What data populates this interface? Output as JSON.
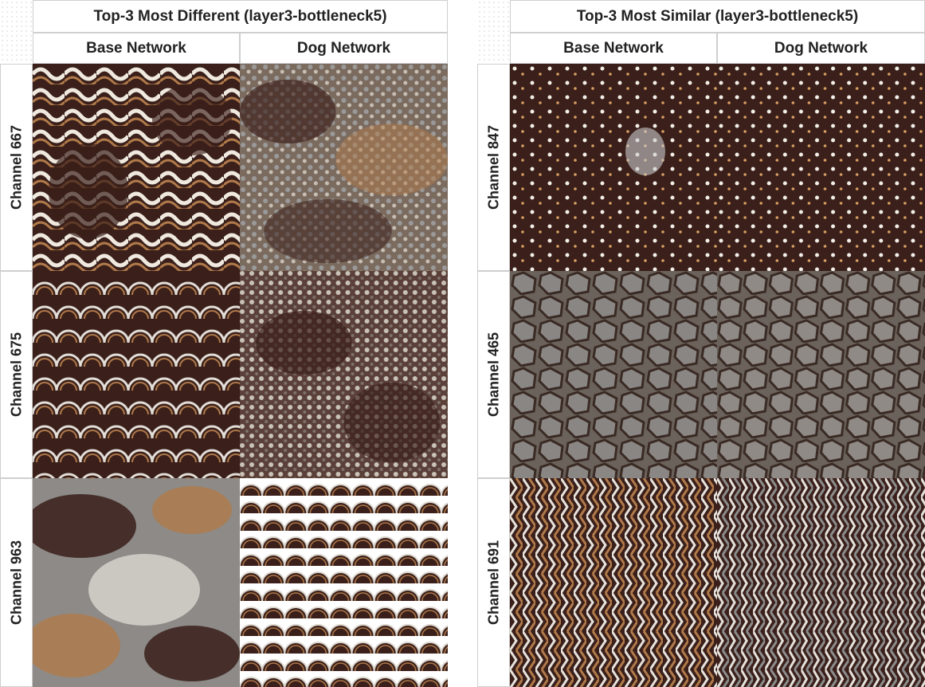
{
  "panels": [
    {
      "title": "Top-3 Most Different (layer3-bottleneck5)",
      "columns": [
        "Base Network",
        "Dog Network"
      ],
      "rows": [
        {
          "label": "Channel 667"
        },
        {
          "label": "Channel 675"
        },
        {
          "label": "Channel 963"
        }
      ]
    },
    {
      "title": "Top-3 Most Similar (layer3-bottleneck5)",
      "columns": [
        "Base Network",
        "Dog Network"
      ],
      "rows": [
        {
          "label": "Channel 847"
        },
        {
          "label": "Channel 465"
        },
        {
          "label": "Channel 691"
        }
      ]
    }
  ],
  "colors": {
    "dark": "#3a1f1a",
    "tan": "#b07a4a",
    "grey": "#8c8c8c",
    "light": "#e6e2dc"
  }
}
